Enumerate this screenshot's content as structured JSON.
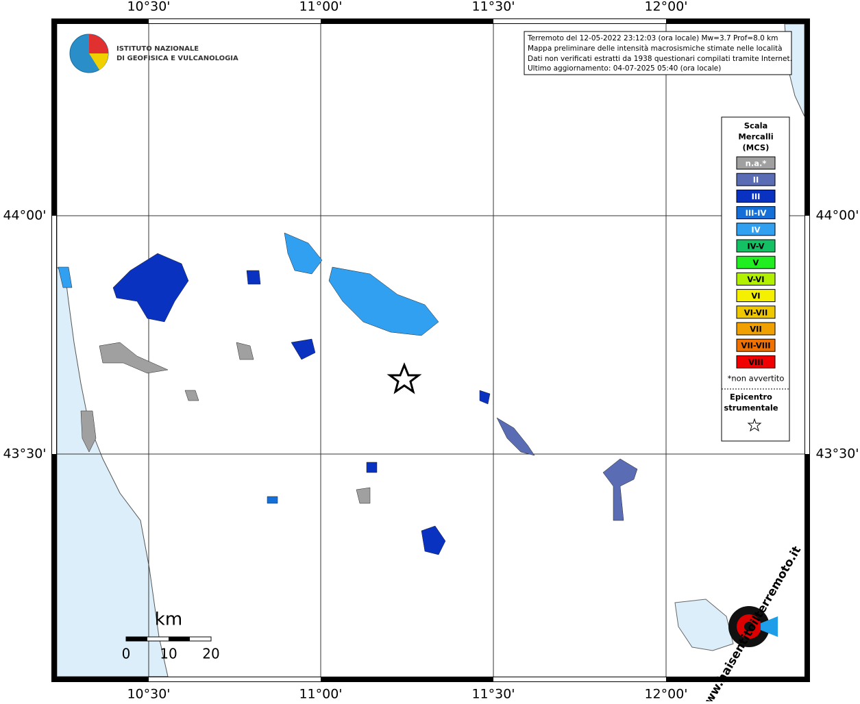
{
  "map": {
    "axis_labels": {
      "top": [
        "10°30'",
        "11°00'",
        "11°30'",
        "12°00'"
      ],
      "bottom": [
        "10°30'",
        "11°00'",
        "11°30'",
        "12°00'"
      ],
      "left": [
        "44°00'",
        "43°30'"
      ],
      "right": [
        "44°00'",
        "43°30'"
      ]
    },
    "institute": [
      "ISTITUTO NAZIONALE",
      "DI GEOFISICA E VULCANOLOGIA"
    ],
    "info": [
      "Terremoto del 12-05-2022 23:12:03 (ora locale) Mw=3.7 Prof=8.0 km",
      "Mappa preliminare delle intensità macrosismiche stimate nelle località",
      "Dati non verificati estratti da 1938 questionari compilati tramite Internet.",
      "Ultimo aggiornamento: 04-07-2025 05:40 (ora locale)"
    ],
    "legend": {
      "title": [
        "Scala",
        "Mercalli",
        "(MCS)"
      ],
      "items": [
        {
          "label": "n.a.*",
          "color": "#a0a0a0"
        },
        {
          "label": "II",
          "color": "#5a6db4"
        },
        {
          "label": "III",
          "color": "#0a32c0"
        },
        {
          "label": "III-IV",
          "color": "#1470d8"
        },
        {
          "label": "IV",
          "color": "#32a0f0"
        },
        {
          "label": "IV-V",
          "color": "#14c064"
        },
        {
          "label": "V",
          "color": "#20ee20"
        },
        {
          "label": "V-VI",
          "color": "#b0f000"
        },
        {
          "label": "VI",
          "color": "#f4f000"
        },
        {
          "label": "VI-VII",
          "color": "#f0c800"
        },
        {
          "label": "VII",
          "color": "#f0a000"
        },
        {
          "label": "VII-VIII",
          "color": "#f07000"
        },
        {
          "label": "VIII",
          "color": "#f00000"
        }
      ],
      "note": "*non avvertito",
      "epicenter": [
        "Epicentro",
        "strumentale"
      ]
    },
    "scale": {
      "unit": "km",
      "labels": [
        "0",
        "10",
        "20"
      ]
    },
    "site": "www.haisentitoilterremoto.it"
  }
}
